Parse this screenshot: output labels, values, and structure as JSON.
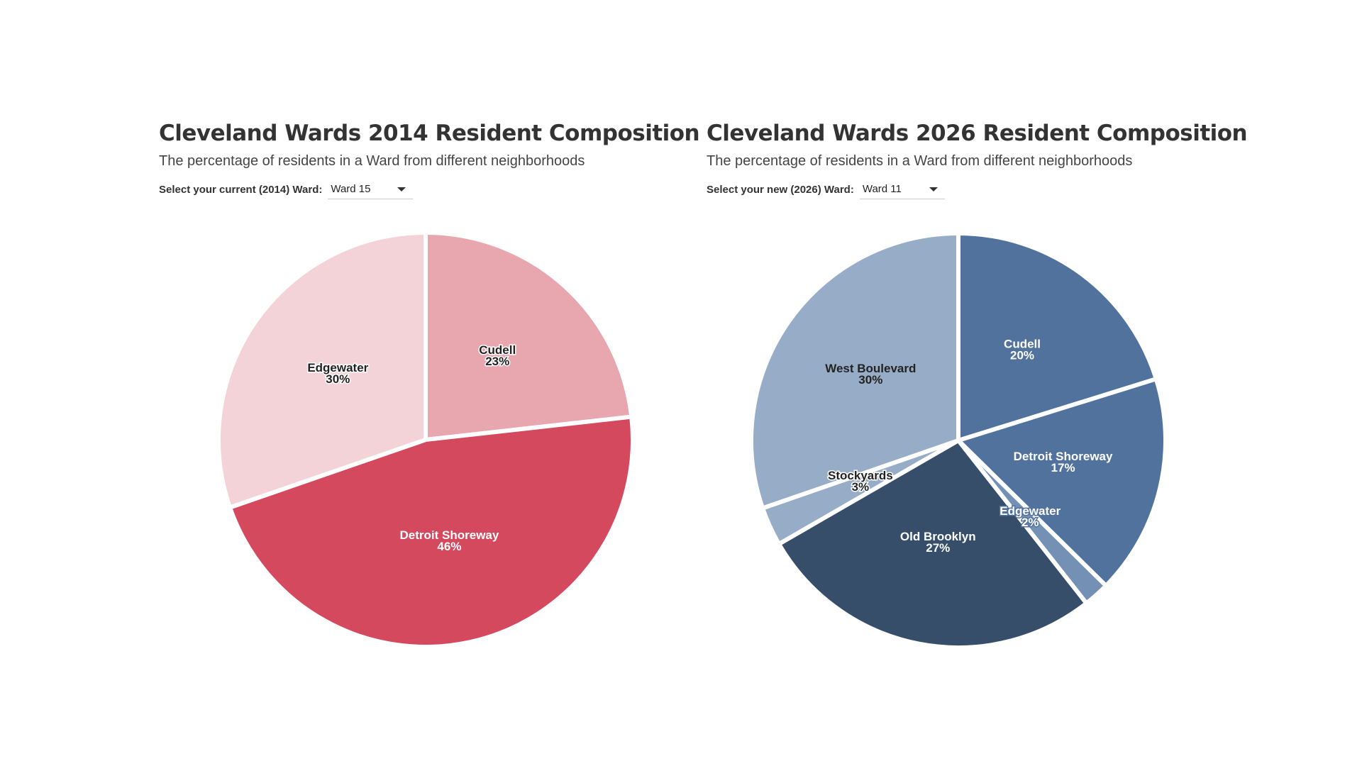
{
  "left_panel": {
    "title": "Cleveland Wards 2014 Resident Composition",
    "subtitle": "The percentage of residents in a Ward from different neighborhoods",
    "selector_label": "Select your current (2014) Ward:",
    "selected_ward": "Ward 15"
  },
  "right_panel": {
    "title": "Cleveland Wards 2026 Resident Composition",
    "subtitle": "The percentage of residents in a Ward from different neighborhoods",
    "selector_label": "Select your new (2026) Ward:",
    "selected_ward": "Ward 11"
  },
  "chart_data": [
    {
      "type": "pie",
      "title": "Cleveland Wards 2014 Resident Composition",
      "subtitle": "The percentage of residents in a Ward from different neighborhoods",
      "slices": [
        {
          "label": "Cudell",
          "value": 23,
          "display": "23%",
          "color": "#e8a6ae",
          "text_color": "#222222",
          "halo": "#ffffff"
        },
        {
          "label": "Detroit Shoreway",
          "value": 46,
          "display": "46%",
          "color": "#d4495e",
          "text_color": "#ffffff",
          "halo": "#d4495e"
        },
        {
          "label": "Edgewater",
          "value": 30,
          "display": "30%",
          "color": "#f4d3d8",
          "text_color": "#222222",
          "halo": "#ffffff"
        }
      ]
    },
    {
      "type": "pie",
      "title": "Cleveland Wards 2026 Resident Composition",
      "subtitle": "The percentage of residents in a Ward from different neighborhoods",
      "slices": [
        {
          "label": "Cudell",
          "value": 20,
          "display": "20%",
          "color": "#52729e",
          "text_color": "#ffffff",
          "halo": "#52729e"
        },
        {
          "label": "Detroit Shoreway",
          "value": 17,
          "display": "17%",
          "color": "#52729e",
          "text_color": "#ffffff",
          "halo": "#52729e"
        },
        {
          "label": "Edgewater",
          "value": 2,
          "display": "2%",
          "color": "#7590b5",
          "text_color": "#ffffff",
          "halo": "#52729e"
        },
        {
          "label": "Old Brooklyn",
          "value": 27,
          "display": "27%",
          "color": "#374e6b",
          "text_color": "#ffffff",
          "halo": "#374e6b"
        },
        {
          "label": "Stockyards",
          "value": 3,
          "display": "3%",
          "color": "#97acc6",
          "text_color": "#222222",
          "halo": "#ffffff"
        },
        {
          "label": "West Boulevard",
          "value": 30,
          "display": "30%",
          "color": "#97acc6",
          "text_color": "#222222",
          "halo": "#97acc6"
        }
      ]
    }
  ]
}
